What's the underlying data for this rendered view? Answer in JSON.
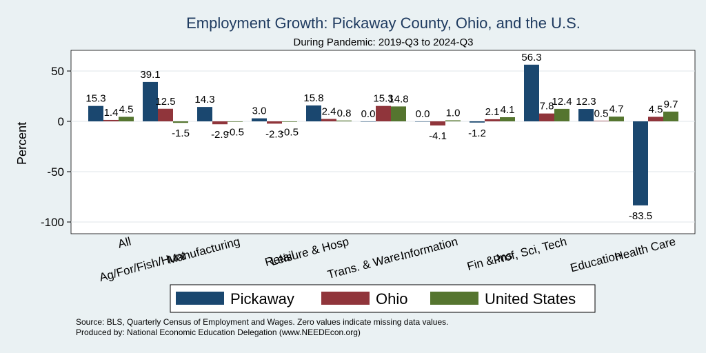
{
  "chart_data": {
    "type": "bar",
    "title": "Employment Growth: Pickaway County, Ohio, and the U.S.",
    "subtitle": "During Pandemic: 2019-Q3 to 2024-Q3",
    "ylabel": "Percent",
    "xlabel": "",
    "ylim": [
      -110,
      70
    ],
    "yticks": [
      50,
      0,
      -50,
      -100
    ],
    "categories": [
      "All",
      "Ag/For/Fish/Hunt",
      "Manufacturing",
      "Retail",
      "Leisure & Hosp",
      "Trans. & Ware.",
      "Information",
      "Fin & Ins",
      "Prof, Sci, Tech",
      "Education",
      "Health Care"
    ],
    "series": [
      {
        "name": "Pickaway",
        "color": "#1a476f",
        "values": [
          15.3,
          39.1,
          14.3,
          3.0,
          15.8,
          0.0,
          0.0,
          -1.2,
          56.3,
          12.3,
          -83.5
        ]
      },
      {
        "name": "Ohio",
        "color": "#90353b",
        "values": [
          1.4,
          12.5,
          -2.9,
          -2.3,
          2.4,
          15.3,
          -4.1,
          2.1,
          7.8,
          0.5,
          4.5
        ]
      },
      {
        "name": "United States",
        "color": "#55752f",
        "values": [
          4.5,
          -1.5,
          -0.5,
          -0.5,
          0.8,
          14.8,
          1.0,
          4.1,
          12.4,
          4.7,
          9.7
        ]
      }
    ],
    "legend_position": "bottom",
    "grid": true
  },
  "footer": {
    "source": "Source: BLS, Quarterly Census of Employment and Wages. Zero values indicate missing data values.",
    "produced": "Produced by: National Economic Education Delegation (www.NEEDEcon.org)"
  }
}
